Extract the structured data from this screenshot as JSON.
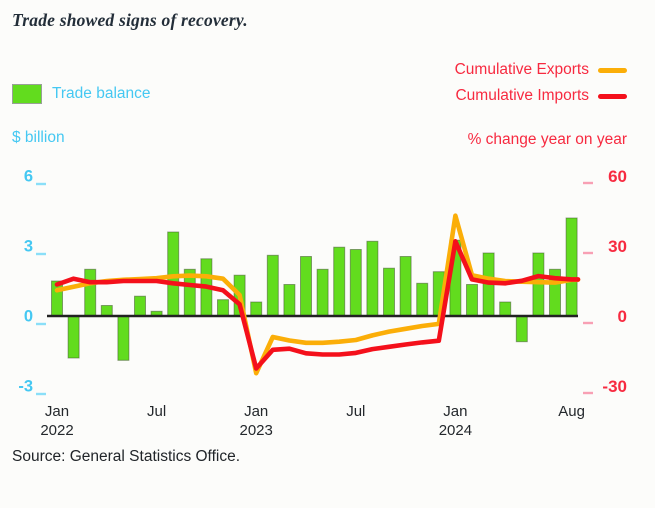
{
  "title": "Trade showed signs of recovery.",
  "legend": {
    "trade_balance_label": "Trade balance",
    "exports_label": "Cumulative Exports",
    "imports_label": "Cumulative Imports"
  },
  "axis_units": {
    "left": "$ billion",
    "right": "% change year on year"
  },
  "source": "Source: General Statistics Office.",
  "colors": {
    "bar_green": "#62DC1E",
    "bar_outline": "rgba(60,75,45,0.5)",
    "exports_orange": "#FBAE08",
    "imports_red": "#F4101B",
    "left_axis_blue": "#45C8F2",
    "left_tick_blue": "#8ADFF8",
    "right_axis_red": "#F72A40",
    "right_tick_pink": "#F8A0B4",
    "axis_line": "#222222",
    "x_label_dark": "#24282C"
  },
  "chart_data": {
    "type": "combo: bar + 2 lines, dual axis",
    "title": "Trade showed signs of recovery.",
    "x": [
      "Jan 2022",
      "Feb 2022",
      "Mar 2022",
      "Apr 2022",
      "May 2022",
      "Jun 2022",
      "Jul 2022",
      "Aug 2022",
      "Sep 2022",
      "Oct 2022",
      "Nov 2022",
      "Dec 2022",
      "Jan 2023",
      "Feb 2023",
      "Mar 2023",
      "Apr 2023",
      "May 2023",
      "Jun 2023",
      "Jul 2023",
      "Aug 2023",
      "Sep 2023",
      "Oct 2023",
      "Nov 2023",
      "Dec 2023",
      "Jan 2024",
      "Feb 2024",
      "Mar 2024",
      "Apr 2024",
      "May 2024",
      "Jun 2024",
      "Jul 2024",
      "Aug 2024"
    ],
    "series": [
      {
        "name": "Trade balance",
        "type": "bar",
        "axis": "left",
        "unit": "$ billion",
        "values": [
          1.5,
          -1.8,
          2.0,
          0.45,
          -1.9,
          0.85,
          0.2,
          3.6,
          2.0,
          2.45,
          0.7,
          1.75,
          0.6,
          2.6,
          1.35,
          2.55,
          2.0,
          2.95,
          2.85,
          3.2,
          2.05,
          2.55,
          1.4,
          1.9,
          3.25,
          1.35,
          2.7,
          0.6,
          -1.1,
          2.7,
          2.0,
          4.2
        ]
      },
      {
        "name": "Cumulative Exports",
        "type": "line",
        "axis": "right",
        "unit": "% change year on year",
        "values": [
          11,
          12.5,
          14,
          15,
          15.5,
          15.8,
          16.2,
          17,
          17.3,
          17,
          16,
          9,
          -24.5,
          -9,
          -10.5,
          -11.5,
          -11.5,
          -11,
          -10.3,
          -8.3,
          -6.7,
          -5.5,
          -4.3,
          -3.4,
          43,
          17.5,
          16,
          15,
          14.7,
          14.5,
          14.3,
          15.5
        ]
      },
      {
        "name": "Cumulative Imports",
        "type": "line",
        "axis": "right",
        "unit": "% change year on year",
        "values": [
          13.5,
          16,
          14.5,
          14.5,
          15,
          15,
          15,
          14,
          13.3,
          12.6,
          11,
          5,
          -22.5,
          -14.5,
          -14,
          -16,
          -16.5,
          -16.5,
          -15.8,
          -14.2,
          -13.2,
          -12.2,
          -11.3,
          -10.6,
          32,
          15.7,
          14.3,
          14,
          15.1,
          17.1,
          16.2,
          15.7
        ]
      }
    ],
    "left_axis": {
      "label": "$ billion",
      "ticks": [
        6,
        3,
        0,
        -3
      ],
      "range": [
        -3.5,
        6.5
      ]
    },
    "right_axis": {
      "label": "% change year on year",
      "ticks": [
        60,
        30,
        0,
        -30
      ],
      "range": [
        -35,
        65
      ]
    },
    "x_ticks": [
      {
        "index": 0,
        "label": "Jan",
        "year": "2022"
      },
      {
        "index": 6,
        "label": "Jul"
      },
      {
        "index": 12,
        "label": "Jan",
        "year": "2023"
      },
      {
        "index": 18,
        "label": "Jul"
      },
      {
        "index": 24,
        "label": "Jan",
        "year": "2024"
      },
      {
        "index": 31,
        "label": "Aug"
      }
    ],
    "grid": false,
    "legend_position": "top"
  }
}
